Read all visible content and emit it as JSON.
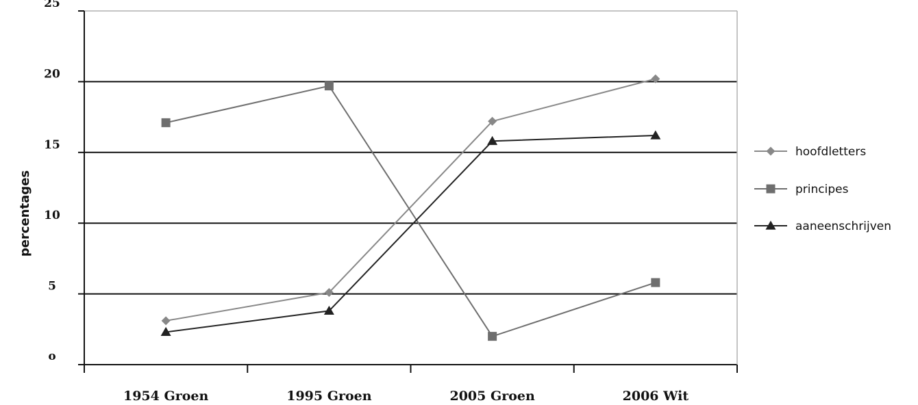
{
  "chart_data": {
    "type": "line",
    "categories": [
      "1954 Groen",
      "1995 Groen",
      "2005 Groen",
      "2006 Wit"
    ],
    "series": [
      {
        "name": "hoofdletters",
        "values": [
          3.1,
          5.1,
          17.2,
          20.2
        ],
        "marker": "diamond",
        "color": "#888888"
      },
      {
        "name": "principes",
        "values": [
          17.1,
          19.7,
          2.0,
          5.8
        ],
        "marker": "square",
        "color": "#6e6e6e"
      },
      {
        "name": "aaneenschrijven",
        "values": [
          2.3,
          3.8,
          15.8,
          16.2
        ],
        "marker": "triangle",
        "color": "#222222"
      }
    ],
    "xlabel": "",
    "ylabel": "percentages",
    "ylim": [
      0,
      25
    ],
    "yticks": [
      0,
      5,
      10,
      15,
      20,
      25
    ],
    "ytick_labels": [
      "o",
      "5",
      "10",
      "15",
      "20",
      "25"
    ],
    "grid": true,
    "legend_position": "right"
  }
}
